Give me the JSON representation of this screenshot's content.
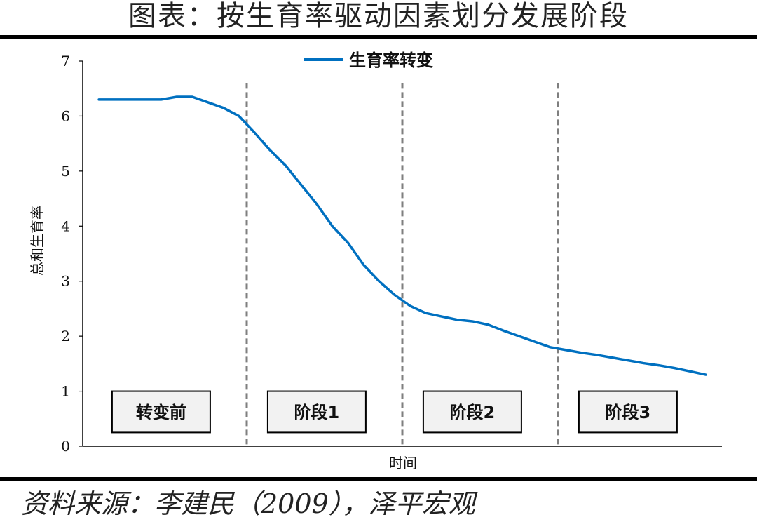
{
  "header": {
    "title": "图表：按生育率驱动因素划分发展阶段"
  },
  "footer": {
    "source": "资料来源：李建民（2009），泽平宏观"
  },
  "chart_data": {
    "type": "line",
    "title": "",
    "xlabel": "时间",
    "ylabel": "总和生育率",
    "ylim": [
      0,
      7
    ],
    "yticks": [
      0,
      1,
      2,
      3,
      4,
      5,
      6,
      7
    ],
    "grid": false,
    "legend": "top-center",
    "series": [
      {
        "name": "生育率转变",
        "color": "#0070C0",
        "x": [
          0,
          1,
          2,
          3,
          4,
          5,
          6,
          7,
          8,
          9,
          10,
          11,
          12,
          13,
          14,
          15,
          16,
          17,
          18,
          19,
          20,
          21,
          22,
          23,
          24,
          25,
          26,
          27,
          28,
          29,
          30,
          31,
          32,
          33,
          34,
          35,
          36,
          37,
          38,
          39
        ],
        "values": [
          6.3,
          6.3,
          6.3,
          6.3,
          6.3,
          6.35,
          6.35,
          6.25,
          6.15,
          6.0,
          5.7,
          5.38,
          5.1,
          4.75,
          4.4,
          4.0,
          3.7,
          3.3,
          3.0,
          2.75,
          2.55,
          2.42,
          2.36,
          2.3,
          2.27,
          2.21,
          2.1,
          2.0,
          1.9,
          1.8,
          1.75,
          1.7,
          1.66,
          1.61,
          1.56,
          1.51,
          1.47,
          1.42,
          1.36,
          1.3
        ]
      }
    ],
    "stage_dividers": [
      9.5,
      19.5,
      29.5
    ],
    "stages": [
      {
        "label": "转变前",
        "center": 4.0
      },
      {
        "label": "阶段1",
        "center": 14.0
      },
      {
        "label": "阶段2",
        "center": 24.0
      },
      {
        "label": "阶段3",
        "center": 34.0
      }
    ],
    "stage_box_range": [
      0.25,
      1.0
    ],
    "colors": {
      "divider": "#7f7f7f",
      "axis": "#000000",
      "box_fill": "#f2f2f2"
    }
  }
}
